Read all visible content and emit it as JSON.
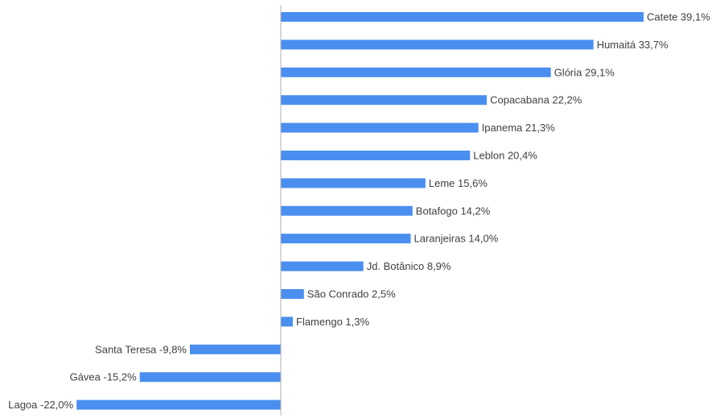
{
  "chart_data": {
    "type": "bar",
    "orientation": "horizontal",
    "title": "",
    "xlabel": "",
    "ylabel": "",
    "xlim": [
      -22.0,
      39.1
    ],
    "grid": false,
    "legend": "none",
    "bar_color": "#4a8ff0",
    "axis_color": "#b0b0b0",
    "categories": [
      "Catete",
      "Humaitá",
      "Glória",
      "Copacabana",
      "Ipanema",
      "Leblon",
      "Leme",
      "Botafogo",
      "Laranjeiras",
      "Jd. Botânico",
      "São Conrado",
      "Flamengo",
      "Santa Teresa",
      "Gávea",
      "Lagoa"
    ],
    "values": [
      39.1,
      33.7,
      29.1,
      22.2,
      21.3,
      20.4,
      15.6,
      14.2,
      14.0,
      8.9,
      2.5,
      1.3,
      -9.8,
      -15.2,
      -22.0
    ],
    "labels": [
      "Catete 39,1%",
      "Humaitá 33,7%",
      "Glória 29,1%",
      "Copacabana 22,2%",
      "Ipanema 21,3%",
      "Leblon 20,4%",
      "Leme 15,6%",
      "Botafogo 14,2%",
      "Laranjeiras 14,0%",
      "Jd. Botânico 8,9%",
      "São Conrado 2,5%",
      "Flamengo 1,3%",
      "Santa Teresa -9,8%",
      "Gávea -15,2%",
      "Lagoa -22,0%"
    ]
  }
}
